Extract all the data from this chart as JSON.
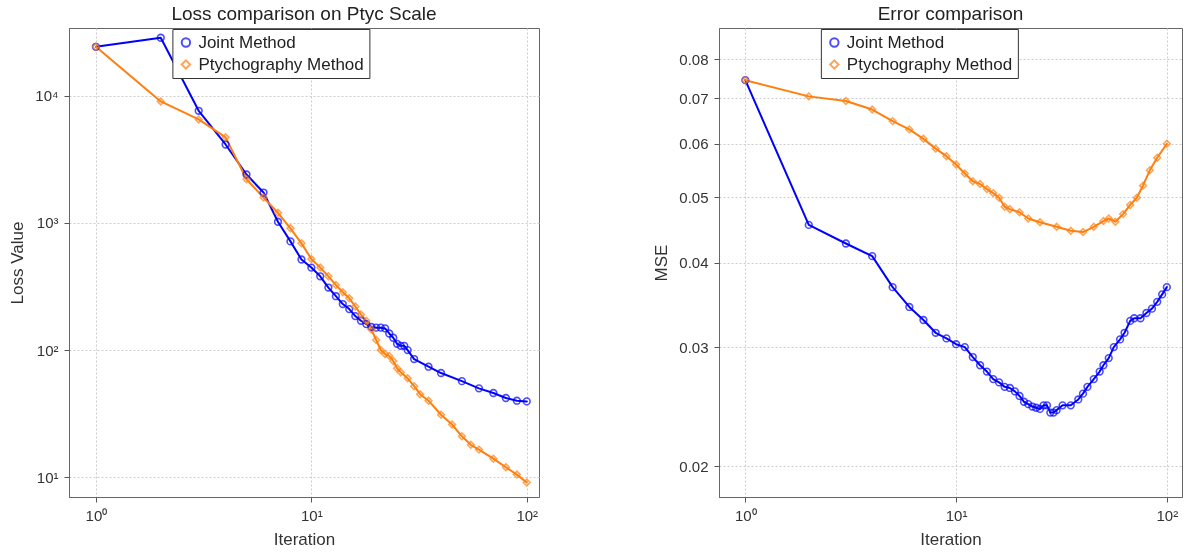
{
  "chart_data": [
    {
      "type": "line",
      "title": "Loss comparison on Ptyc Scale",
      "xlabel": "Iteration",
      "ylabel": "Loss Value",
      "log": "xy",
      "grid": true,
      "legend": "top",
      "xlim": [
        0.75,
        114
      ],
      "ylim": [
        7,
        34000
      ],
      "xticks": [
        {
          "value": 1,
          "label": "10⁰"
        },
        {
          "value": 10,
          "label": "10¹"
        },
        {
          "value": 100,
          "label": "10²"
        }
      ],
      "yticks": [
        {
          "value": 10,
          "label": "10¹"
        },
        {
          "value": 100,
          "label": "10²"
        },
        {
          "value": 1000,
          "label": "10³"
        },
        {
          "value": 10000,
          "label": "10⁴"
        }
      ],
      "series": [
        {
          "name": "Joint Method",
          "color": "#0000ff",
          "marker": "circle",
          "x": [
            1,
            2,
            3,
            4,
            5,
            6,
            7,
            8,
            9,
            10,
            11,
            12,
            13,
            14,
            15,
            16,
            17,
            18,
            19,
            20,
            21,
            22,
            23,
            24,
            25,
            26,
            27,
            28,
            30,
            35,
            40,
            50,
            60,
            70,
            80,
            90,
            100
          ],
          "values": [
            24200,
            28500,
            7600,
            4130,
            2400,
            1730,
            1020,
            715,
            515,
            445,
            380,
            310,
            265,
            230,
            210,
            185,
            170,
            160,
            152,
            150,
            150,
            148,
            135,
            125,
            112,
            108,
            108,
            100,
            85,
            74,
            66,
            57,
            50,
            46,
            42,
            40,
            39.5
          ]
        },
        {
          "name": "Ptychography Method",
          "color": "#ff7f0e",
          "marker": "diamond",
          "x": [
            1,
            2,
            3,
            4,
            5,
            6,
            7,
            8,
            9,
            10,
            11,
            12,
            13,
            14,
            15,
            16,
            17,
            18,
            19,
            20,
            21,
            22,
            23,
            24,
            25,
            26,
            28,
            30,
            32,
            35,
            40,
            45,
            50,
            55,
            60,
            70,
            80,
            90,
            100
          ],
          "values": [
            24200,
            9000,
            6500,
            4700,
            2200,
            1580,
            1200,
            905,
            690,
            520,
            445,
            380,
            325,
            285,
            255,
            220,
            190,
            170,
            145,
            120,
            100,
            93,
            90,
            82,
            72,
            67,
            60,
            52,
            45,
            40,
            31,
            26,
            21,
            18,
            16.5,
            14,
            12,
            10.5,
            9.1
          ]
        }
      ]
    },
    {
      "type": "line",
      "title": "Error comparison",
      "xlabel": "Iteration",
      "ylabel": "MSE",
      "log": "xy",
      "grid": true,
      "legend": "top",
      "xlim": [
        0.75,
        118
      ],
      "ylim": [
        0.018,
        0.089
      ],
      "xticks": [
        {
          "value": 1,
          "label": "10⁰"
        },
        {
          "value": 10,
          "label": "10¹"
        },
        {
          "value": 100,
          "label": "10²"
        }
      ],
      "yticks": [
        0.02,
        0.03,
        0.04,
        0.05,
        0.06,
        0.07,
        0.08
      ],
      "series": [
        {
          "name": "Joint Method",
          "color": "#0000ff",
          "marker": "circle",
          "x": [
            1,
            2,
            3,
            4,
            5,
            6,
            7,
            8,
            9,
            10,
            11,
            12,
            13,
            14,
            15,
            16,
            17,
            18,
            19,
            20,
            21,
            22,
            23,
            24,
            25,
            26,
            27,
            28,
            29,
            30,
            32,
            35,
            38,
            40,
            42,
            45,
            48,
            50,
            53,
            56,
            60,
            63,
            67,
            70,
            75,
            80,
            85,
            90,
            95,
            100
          ],
          "values": [
            0.0745,
            0.0455,
            0.0427,
            0.0409,
            0.0368,
            0.0344,
            0.0329,
            0.0315,
            0.0309,
            0.0303,
            0.03,
            0.029,
            0.0282,
            0.0276,
            0.0269,
            0.0266,
            0.0262,
            0.0261,
            0.0258,
            0.0254,
            0.0249,
            0.0247,
            0.0245,
            0.0244,
            0.0243,
            0.0246,
            0.0246,
            0.024,
            0.024,
            0.0242,
            0.0246,
            0.0246,
            0.0251,
            0.0256,
            0.0262,
            0.0269,
            0.0276,
            0.0282,
            0.0289,
            0.03,
            0.0308,
            0.0315,
            0.0328,
            0.0331,
            0.0331,
            0.0337,
            0.0342,
            0.035,
            0.0359,
            0.0368
          ]
        },
        {
          "name": "Ptychography Method",
          "color": "#ff7f0e",
          "marker": "diamond",
          "x": [
            1,
            2,
            3,
            4,
            5,
            6,
            7,
            8,
            9,
            10,
            11,
            12,
            13,
            14,
            15,
            16,
            17,
            18,
            20,
            22,
            25,
            30,
            35,
            40,
            45,
            50,
            53,
            57,
            62,
            67,
            72,
            77,
            83,
            90,
            100
          ],
          "values": [
            0.0745,
            0.0705,
            0.0694,
            0.0674,
            0.0648,
            0.063,
            0.061,
            0.059,
            0.0575,
            0.0559,
            0.0542,
            0.0528,
            0.0523,
            0.0514,
            0.0507,
            0.0499,
            0.0484,
            0.048,
            0.0475,
            0.0465,
            0.0459,
            0.0452,
            0.0446,
            0.0444,
            0.0452,
            0.0461,
            0.0465,
            0.046,
            0.0472,
            0.0487,
            0.0499,
            0.052,
            0.0548,
            0.0572,
            0.06
          ]
        }
      ]
    }
  ]
}
